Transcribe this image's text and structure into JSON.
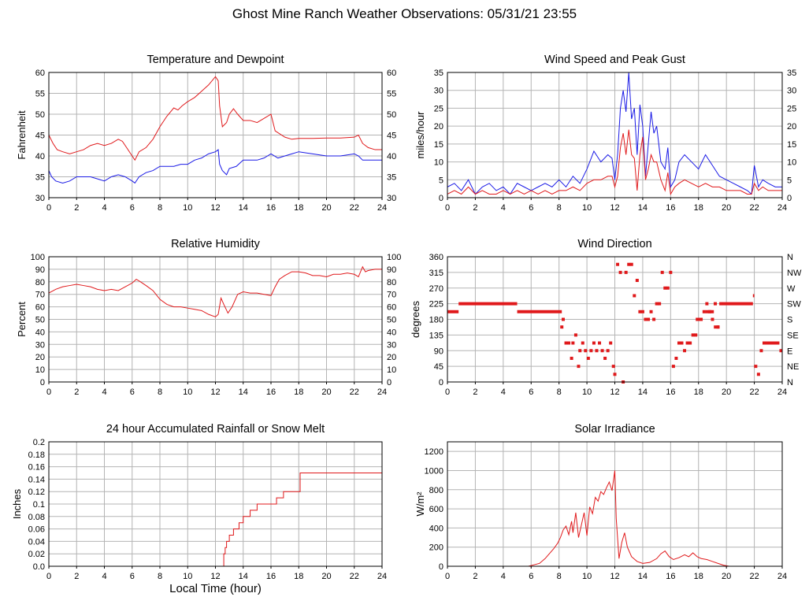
{
  "page": {
    "title": "Ghost Mine Ranch Weather Observations: 05/31/21 23:55",
    "xlabel": "Local Time (hour)"
  },
  "colors": {
    "red": "#e0191b",
    "blue": "#1a1ae6",
    "grid": "#b4b4b4",
    "frame": "#000000"
  },
  "chart_data": [
    {
      "id": "temperature",
      "type": "line",
      "title": "Temperature and Dewpoint",
      "ylabel": "Fahrenheit",
      "xlim": [
        0,
        24
      ],
      "ylim": [
        30,
        60
      ],
      "yticks": [
        30,
        35,
        40,
        45,
        50,
        55,
        60
      ],
      "right_axis": true,
      "series": [
        {
          "color": "#e0191b",
          "x": [
            0,
            0.3,
            0.6,
            1,
            1.5,
            2,
            2.5,
            3,
            3.5,
            4,
            4.5,
            5,
            5.3,
            5.6,
            6,
            6.2,
            6.5,
            7,
            7.5,
            8,
            8.5,
            9,
            9.3,
            9.6,
            10,
            10.5,
            11,
            11.5,
            12,
            12.2,
            12.3,
            12.5,
            12.8,
            13,
            13.3,
            13.6,
            14,
            14.5,
            15,
            15.5,
            16,
            16.3,
            17,
            17.5,
            18,
            19,
            20,
            21,
            22,
            22.3,
            22.6,
            23,
            23.5,
            24
          ],
          "y": [
            45,
            43,
            41.5,
            41,
            40.5,
            41,
            41.5,
            42.5,
            43,
            42.5,
            43,
            44,
            43.5,
            42,
            40,
            39,
            41,
            42,
            44,
            47,
            49.5,
            51.5,
            51,
            52,
            53,
            54,
            55.5,
            57,
            59,
            58,
            52,
            47,
            48,
            50,
            51.3,
            50,
            48.5,
            48.5,
            48,
            49,
            50,
            46,
            44.5,
            44,
            44.2,
            44.2,
            44.3,
            44.3,
            44.5,
            45,
            43,
            42,
            41.5,
            41.5
          ]
        },
        {
          "color": "#1a1ae6",
          "x": [
            0,
            0.2,
            0.5,
            1,
            1.5,
            2,
            2.5,
            3,
            3.5,
            4,
            4.5,
            5,
            5.5,
            6,
            6.2,
            6.5,
            7,
            7.5,
            8,
            8.5,
            9,
            9.5,
            10,
            10.5,
            11,
            11.5,
            12,
            12.2,
            12.3,
            12.5,
            12.8,
            13,
            13.5,
            14,
            14.5,
            15,
            15.5,
            16,
            16.5,
            17,
            17.5,
            18,
            19,
            20,
            21,
            22,
            22.3,
            22.6,
            23,
            23.5,
            24
          ],
          "y": [
            36.5,
            35,
            34,
            33.5,
            34,
            35,
            35,
            35,
            34.5,
            34,
            35,
            35.5,
            35,
            34,
            33.5,
            35,
            36,
            36.5,
            37.5,
            37.5,
            37.5,
            38,
            38,
            39,
            39.5,
            40.5,
            41,
            41.5,
            38,
            36.5,
            35.5,
            37,
            37.5,
            39,
            39,
            39,
            39.5,
            40.5,
            39.5,
            40,
            40.5,
            41,
            40.5,
            40,
            40,
            40.5,
            40,
            39,
            39,
            39,
            39
          ]
        }
      ]
    },
    {
      "id": "wind-speed",
      "type": "line",
      "title": "Wind Speed and Peak Gust",
      "ylabel": "miles/hour",
      "xlim": [
        0,
        24
      ],
      "ylim": [
        0,
        35
      ],
      "yticks": [
        0,
        5,
        10,
        15,
        20,
        25,
        30,
        35
      ],
      "right_axis": true,
      "series": [
        {
          "color": "#1a1ae6",
          "x": [
            0,
            0.5,
            1,
            1.5,
            2,
            2.5,
            3,
            3.5,
            4,
            4.5,
            5,
            5.5,
            6,
            6.5,
            7,
            7.5,
            8,
            8.5,
            9,
            9.5,
            10,
            10.5,
            11,
            11.5,
            11.8,
            12,
            12.2,
            12.4,
            12.6,
            12.8,
            13,
            13.2,
            13.4,
            13.6,
            13.8,
            14,
            14.2,
            14.4,
            14.6,
            14.8,
            15,
            15.3,
            15.6,
            15.8,
            16,
            16.3,
            16.6,
            17,
            17.5,
            18,
            18.5,
            19,
            19.5,
            20,
            20.5,
            21,
            21.5,
            21.8,
            22,
            22.3,
            22.6,
            23,
            23.5,
            24
          ],
          "y": [
            3,
            4,
            2,
            5,
            1,
            3,
            4,
            2,
            3,
            1,
            4,
            3,
            2,
            3,
            4,
            3,
            5,
            3,
            6,
            4,
            8,
            13,
            10,
            12,
            11,
            5,
            12,
            25,
            30,
            24,
            35,
            22,
            25,
            12,
            26,
            20,
            6,
            15,
            24,
            18,
            20,
            10,
            8,
            14,
            3,
            5,
            10,
            12,
            10,
            8,
            12,
            9,
            6,
            5,
            4,
            3,
            2,
            1,
            9,
            3,
            5,
            4,
            3,
            3
          ]
        },
        {
          "color": "#e0191b",
          "x": [
            0,
            0.5,
            1,
            1.5,
            2,
            2.5,
            3,
            3.5,
            4,
            4.5,
            5,
            5.5,
            6,
            6.5,
            7,
            7.5,
            8,
            8.5,
            9,
            9.5,
            10,
            10.5,
            11,
            11.5,
            11.8,
            12,
            12.2,
            12.4,
            12.6,
            12.8,
            13,
            13.2,
            13.4,
            13.6,
            13.8,
            14,
            14.2,
            14.4,
            14.6,
            14.8,
            15,
            15.3,
            15.6,
            15.8,
            16,
            16.3,
            16.6,
            17,
            17.5,
            18,
            18.5,
            19,
            19.5,
            20,
            20.5,
            21,
            21.5,
            21.8,
            22,
            22.3,
            22.6,
            23,
            23.5,
            24
          ],
          "y": [
            1,
            2,
            1,
            3,
            1,
            2,
            1,
            1,
            2,
            1,
            2,
            1,
            2,
            1,
            2,
            1,
            2,
            2,
            3,
            2,
            4,
            5,
            5,
            6,
            6,
            3,
            6,
            14,
            18,
            12,
            19,
            12,
            11,
            2,
            12,
            17,
            5,
            8,
            12,
            10,
            10,
            5,
            2,
            7,
            1,
            3,
            4,
            5,
            4,
            3,
            4,
            3,
            3,
            2,
            2,
            2,
            1,
            1,
            4,
            2,
            3,
            2,
            2,
            2
          ]
        }
      ]
    },
    {
      "id": "humidity",
      "type": "line",
      "title": "Relative Humidity",
      "ylabel": "Percent",
      "xlim": [
        0,
        24
      ],
      "ylim": [
        0,
        100
      ],
      "yticks": [
        0,
        10,
        20,
        30,
        40,
        50,
        60,
        70,
        80,
        90,
        100
      ],
      "right_axis": true,
      "series": [
        {
          "color": "#e0191b",
          "x": [
            0,
            0.5,
            1,
            1.5,
            2,
            2.5,
            3,
            3.5,
            4,
            4.5,
            5,
            5.5,
            6,
            6.3,
            6.6,
            7,
            7.5,
            8,
            8.5,
            9,
            9.5,
            10,
            10.5,
            11,
            11.5,
            12,
            12.2,
            12.4,
            12.6,
            12.9,
            13.2,
            13.6,
            14,
            14.5,
            15,
            15.5,
            16,
            16.3,
            16.6,
            17,
            17.5,
            18,
            18.5,
            19,
            19.5,
            20,
            20.5,
            21,
            21.5,
            22,
            22.3,
            22.6,
            22.8,
            23,
            23.5,
            24
          ],
          "y": [
            71,
            74,
            76,
            77,
            78,
            77,
            76,
            74,
            73,
            74,
            73,
            76,
            79,
            82,
            80,
            77,
            73,
            66,
            62,
            60,
            60,
            59,
            58,
            57,
            54,
            52,
            54,
            67,
            62,
            55,
            60,
            70,
            72,
            71,
            71,
            70,
            69,
            76,
            82,
            85,
            88,
            88,
            87,
            85,
            85,
            84,
            86,
            86,
            87,
            86,
            84,
            92,
            88,
            89,
            90,
            90
          ]
        }
      ]
    },
    {
      "id": "wind-direction",
      "type": "scatter",
      "title": "Wind Direction",
      "ylabel": "degrees",
      "xlim": [
        0,
        24
      ],
      "ylim": [
        0,
        360
      ],
      "yticks": [
        0,
        45,
        90,
        135,
        180,
        225,
        270,
        315,
        360
      ],
      "right_labels": [
        "N",
        "NE",
        "E",
        "SE",
        "S",
        "SW",
        "W",
        "NW",
        "N"
      ],
      "series": [
        {
          "color": "#e0191b",
          "segments": [
            [
              0,
              0.8,
              202
            ],
            [
              0.8,
              5,
              225
            ],
            [
              5,
              8.2,
              202
            ],
            [
              21.9,
              22.0,
              248
            ],
            [
              23.0,
              23.8,
              112
            ],
            [
              23.8,
              24,
              90
            ],
            [
              19.7,
              21.9,
              225
            ],
            [
              17.8,
              18.3,
              180
            ],
            [
              18.5,
              19.1,
              202
            ],
            [
              19.1,
              19.5,
              158
            ]
          ],
          "x": [
            8.2,
            8.3,
            8.5,
            8.7,
            8.9,
            9.0,
            9.2,
            9.4,
            9.5,
            9.7,
            9.9,
            10.1,
            10.3,
            10.5,
            10.7,
            10.9,
            11.1,
            11.3,
            11.5,
            11.7,
            11.9,
            12.0,
            12.2,
            12.4,
            12.6,
            12.8,
            13.0,
            13.2,
            13.4,
            13.6,
            13.8,
            14.0,
            14.2,
            14.4,
            14.6,
            14.8,
            15.0,
            15.2,
            15.4,
            15.6,
            15.8,
            16.0,
            16.2,
            16.4,
            16.6,
            16.8,
            17.0,
            17.2,
            17.4,
            17.6,
            17.8,
            18.4,
            18.6,
            18.8,
            19.0,
            19.2,
            19.4,
            19.6,
            22.1,
            22.3,
            22.5,
            22.7,
            22.9
          ],
          "y": [
            158,
            180,
            112,
            112,
            68,
            112,
            135,
            45,
            90,
            112,
            90,
            68,
            90,
            112,
            90,
            112,
            90,
            68,
            90,
            112,
            45,
            22,
            338,
            315,
            0,
            315,
            338,
            338,
            248,
            292,
            202,
            202,
            180,
            180,
            202,
            180,
            225,
            225,
            315,
            270,
            270,
            315,
            45,
            68,
            112,
            112,
            90,
            112,
            112,
            135,
            135,
            202,
            225,
            202,
            180,
            225,
            158,
            225,
            45,
            22,
            90,
            112,
            112
          ]
        }
      ]
    },
    {
      "id": "rainfall",
      "type": "line",
      "title": "24 hour Accumulated Rainfall or Snow Melt",
      "ylabel": "Inches",
      "xlim": [
        0,
        24
      ],
      "ylim": [
        0,
        0.2
      ],
      "yticks": [
        0,
        0.02,
        0.04,
        0.06,
        0.08,
        0.1,
        0.12,
        0.14,
        0.16,
        0.18,
        0.2
      ],
      "ytick_labels": [
        "0.0",
        "0.02",
        "0.04",
        "0.06",
        "0.08",
        "0.1",
        "0.12",
        "0.14",
        "0.16",
        "0.18",
        "0.2"
      ],
      "right_axis": false,
      "series": [
        {
          "color": "#e0191b",
          "step": true,
          "x": [
            0,
            12.5,
            12.6,
            12.7,
            12.8,
            13.0,
            13.3,
            13.7,
            14.0,
            14.5,
            15.0,
            15.8,
            16.4,
            16.9,
            17.4,
            17.8,
            18.1,
            24
          ],
          "y": [
            0,
            0,
            0.02,
            0.03,
            0.04,
            0.05,
            0.06,
            0.07,
            0.08,
            0.09,
            0.1,
            0.1,
            0.11,
            0.12,
            0.12,
            0.12,
            0.15,
            0.15
          ]
        }
      ]
    },
    {
      "id": "solar",
      "type": "line",
      "title": "Solar Irradiance",
      "ylabel": "W/m²",
      "xlim": [
        0,
        24
      ],
      "ylim": [
        0,
        1300
      ],
      "yticks": [
        0,
        200,
        400,
        600,
        800,
        1000,
        1200
      ],
      "right_axis": false,
      "series": [
        {
          "color": "#e0191b",
          "x": [
            0,
            5.8,
            6.2,
            6.6,
            7,
            7.3,
            7.6,
            7.9,
            8.1,
            8.3,
            8.5,
            8.7,
            8.9,
            9.0,
            9.2,
            9.4,
            9.6,
            9.8,
            10.0,
            10.2,
            10.4,
            10.6,
            10.8,
            11.0,
            11.2,
            11.4,
            11.6,
            11.8,
            12.0,
            12.1,
            12.3,
            12.5,
            12.7,
            12.9,
            13.2,
            13.6,
            14,
            14.5,
            15,
            15.3,
            15.6,
            15.9,
            16.2,
            16.6,
            17,
            17.3,
            17.6,
            17.9,
            18.2,
            18.6,
            19,
            19.4,
            19.8,
            20.2,
            24
          ],
          "y": [
            0,
            0,
            15,
            30,
            80,
            130,
            180,
            240,
            300,
            380,
            420,
            330,
            470,
            350,
            560,
            300,
            430,
            560,
            320,
            620,
            550,
            720,
            680,
            780,
            750,
            820,
            880,
            790,
            1000,
            500,
            80,
            250,
            350,
            200,
            100,
            50,
            30,
            40,
            80,
            130,
            160,
            100,
            70,
            90,
            120,
            100,
            140,
            100,
            80,
            70,
            50,
            30,
            10,
            0,
            0
          ]
        }
      ]
    }
  ]
}
